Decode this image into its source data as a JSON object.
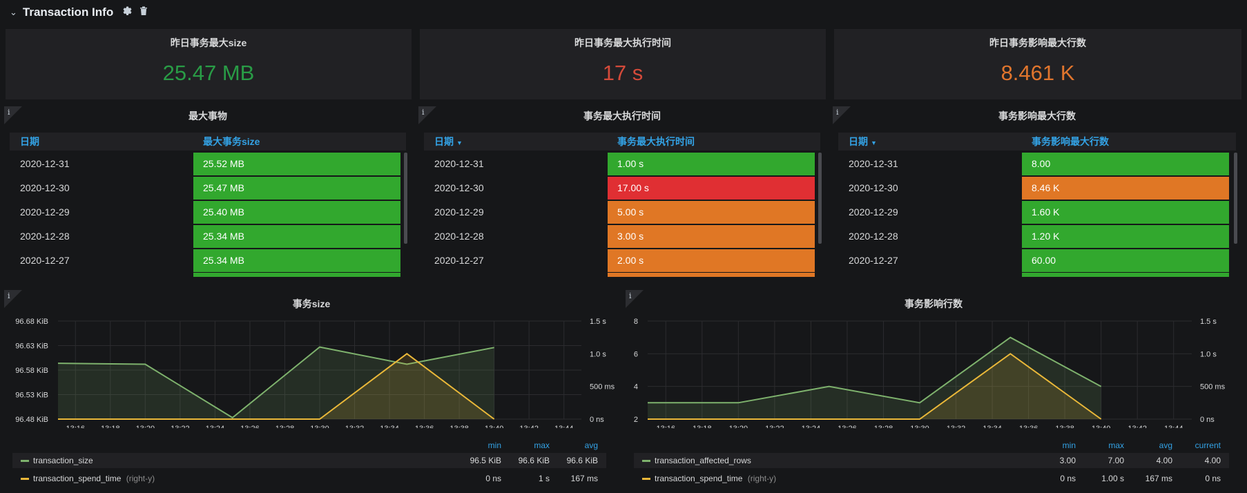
{
  "row": {
    "title": "Transaction Info",
    "icons": [
      "chevron-down-icon",
      "gear-icon",
      "trash-icon"
    ]
  },
  "colors": {
    "green": "#299c46",
    "red": "#d44a3a",
    "orange": "#e0752d",
    "cell_green": "#32a82e",
    "cell_red": "#e02f33",
    "cell_orange": "#e07725",
    "series_green": "#7eb26d",
    "series_yellow": "#eab839",
    "header_blue": "#33a2e5"
  },
  "stats": [
    {
      "title": "昨日事务最大size",
      "value": "25.47 MB",
      "color": "#299c46"
    },
    {
      "title": "昨日事务最大执行时间",
      "value": "17 s",
      "color": "#d44a3a"
    },
    {
      "title": "昨日事务影响最大行数",
      "value": "8.461 K",
      "color": "#e0752d"
    }
  ],
  "tables": [
    {
      "title": "最大事物",
      "col1": "日期",
      "col2": "最大事务size",
      "sortable": false,
      "rows": [
        {
          "date": "2020-12-31",
          "value": "25.52 MB",
          "color": "#32a82e"
        },
        {
          "date": "2020-12-30",
          "value": "25.47 MB",
          "color": "#32a82e"
        },
        {
          "date": "2020-12-29",
          "value": "25.40 MB",
          "color": "#32a82e"
        },
        {
          "date": "2020-12-28",
          "value": "25.34 MB",
          "color": "#32a82e"
        },
        {
          "date": "2020-12-27",
          "value": "25.34 MB",
          "color": "#32a82e"
        }
      ]
    },
    {
      "title": "事务最大执行时间",
      "col1": "日期",
      "col2": "事务最大执行时间",
      "sortable": true,
      "rows": [
        {
          "date": "2020-12-31",
          "value": "1.00 s",
          "color": "#32a82e"
        },
        {
          "date": "2020-12-30",
          "value": "17.00 s",
          "color": "#e02f33"
        },
        {
          "date": "2020-12-29",
          "value": "5.00 s",
          "color": "#e07725"
        },
        {
          "date": "2020-12-28",
          "value": "3.00 s",
          "color": "#e07725"
        },
        {
          "date": "2020-12-27",
          "value": "2.00 s",
          "color": "#e07725"
        }
      ]
    },
    {
      "title": "事务影响最大行数",
      "col1": "日期",
      "col2": "事务影响最大行数",
      "sortable": true,
      "rows": [
        {
          "date": "2020-12-31",
          "value": "8.00",
          "color": "#32a82e"
        },
        {
          "date": "2020-12-30",
          "value": "8.46 K",
          "color": "#e07725"
        },
        {
          "date": "2020-12-29",
          "value": "1.60 K",
          "color": "#32a82e"
        },
        {
          "date": "2020-12-28",
          "value": "1.20 K",
          "color": "#32a82e"
        },
        {
          "date": "2020-12-27",
          "value": "60.00",
          "color": "#32a82e"
        }
      ]
    }
  ],
  "chart_data": [
    {
      "type": "line",
      "title": "事务size",
      "x_ticks": [
        "13:16",
        "13:18",
        "13:20",
        "13:22",
        "13:24",
        "13:26",
        "13:28",
        "13:30",
        "13:32",
        "13:34",
        "13:36",
        "13:38",
        "13:40",
        "13:42",
        "13:44"
      ],
      "xlim": [
        "13:15",
        "13:45"
      ],
      "y_left_ticks": [
        "96.48 KiB",
        "96.53 KiB",
        "96.58 KiB",
        "96.63 KiB",
        "96.68 KiB"
      ],
      "ylim_left": [
        96.48,
        96.68
      ],
      "y_right_ticks": [
        "0 ns",
        "500 ms",
        "1.0 s",
        "1.5 s"
      ],
      "ylim_right": [
        0,
        1.5
      ],
      "series": [
        {
          "name": "transaction_size",
          "axis": "left",
          "color": "#7eb26d",
          "fill": true,
          "x": [
            "13:15",
            "13:20",
            "13:25",
            "13:30",
            "13:35",
            "13:40"
          ],
          "values": [
            96.594,
            96.592,
            96.483,
            96.627,
            96.592,
            96.626
          ]
        },
        {
          "name": "transaction_spend_time",
          "axis": "right",
          "color": "#eab839",
          "fill": true,
          "x": [
            "13:15",
            "13:20",
            "13:25",
            "13:30",
            "13:35",
            "13:40"
          ],
          "values": [
            0,
            0,
            0,
            0,
            1.0,
            0
          ]
        }
      ],
      "legend": {
        "headers": [
          "min",
          "max",
          "avg"
        ],
        "rows": [
          {
            "name": "transaction_size",
            "suffix": "",
            "color": "#7eb26d",
            "values": [
              "96.5 KiB",
              "96.6 KiB",
              "96.6 KiB"
            ]
          },
          {
            "name": "transaction_spend_time",
            "suffix": "(right-y)",
            "color": "#eab839",
            "values": [
              "0 ns",
              "1 s",
              "167 ms"
            ]
          }
        ]
      }
    },
    {
      "type": "line",
      "title": "事务影响行数",
      "x_ticks": [
        "13:16",
        "13:18",
        "13:20",
        "13:22",
        "13:24",
        "13:26",
        "13:28",
        "13:30",
        "13:32",
        "13:34",
        "13:36",
        "13:38",
        "13:40",
        "13:42",
        "13:44"
      ],
      "xlim": [
        "13:15",
        "13:45"
      ],
      "y_left_ticks": [
        "2",
        "4",
        "6",
        "8"
      ],
      "ylim_left": [
        2,
        8
      ],
      "y_right_ticks": [
        "0 ns",
        "500 ms",
        "1.0 s",
        "1.5 s"
      ],
      "ylim_right": [
        0,
        1.5
      ],
      "series": [
        {
          "name": "transaction_affected_rows",
          "axis": "left",
          "color": "#7eb26d",
          "fill": true,
          "x": [
            "13:15",
            "13:20",
            "13:25",
            "13:30",
            "13:35",
            "13:40"
          ],
          "values": [
            3,
            3,
            4,
            3,
            7,
            4
          ]
        },
        {
          "name": "transaction_spend_time",
          "axis": "right",
          "color": "#eab839",
          "fill": true,
          "x": [
            "13:15",
            "13:20",
            "13:25",
            "13:30",
            "13:35",
            "13:40"
          ],
          "values": [
            0,
            0,
            0,
            0,
            1.0,
            0
          ]
        }
      ],
      "legend": {
        "headers": [
          "min",
          "max",
          "avg",
          "current"
        ],
        "rows": [
          {
            "name": "transaction_affected_rows",
            "suffix": "",
            "color": "#7eb26d",
            "values": [
              "3.00",
              "7.00",
              "4.00",
              "4.00"
            ]
          },
          {
            "name": "transaction_spend_time",
            "suffix": "(right-y)",
            "color": "#eab839",
            "values": [
              "0 ns",
              "1.00 s",
              "167 ms",
              "0 ns"
            ]
          }
        ]
      }
    }
  ]
}
